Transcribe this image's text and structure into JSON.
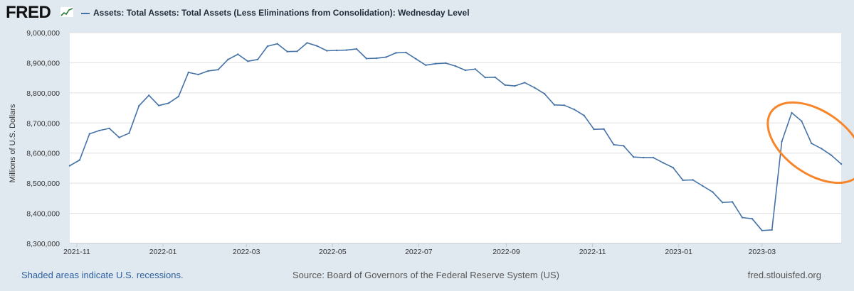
{
  "header": {
    "logo_text": "FRED",
    "logo_icon": "chart-line-icon",
    "legend_label": "Assets: Total Assets: Total Assets (Less Eliminations from Consolidation): Wednesday Level"
  },
  "footer": {
    "recession_note": "Shaded areas indicate U.S. recessions.",
    "source": "Source: Board of Governors of the Federal Reserve System (US)",
    "site": "fred.stlouisfed.org"
  },
  "colors": {
    "line": "#4572a7",
    "annotation": "#f7862b",
    "plot_background": "#ffffff",
    "page_background": "#e1e9f0",
    "gridline": "#e0e0e0"
  },
  "chart_data": {
    "type": "line",
    "title": "",
    "xlabel": "",
    "ylabel": "Millions of U.S. Dollars",
    "ylim": [
      8300000,
      9000000
    ],
    "yticks": [
      8300000,
      8400000,
      8500000,
      8600000,
      8700000,
      8800000,
      8900000,
      9000000
    ],
    "ytick_labels": [
      "8,300,000",
      "8,400,000",
      "8,500,000",
      "8,600,000",
      "8,700,000",
      "8,800,000",
      "8,900,000",
      "9,000,000"
    ],
    "xlim": [
      "2021-10-27",
      "2023-04-26"
    ],
    "xticks": [
      "2021-11-01",
      "2022-01-01",
      "2022-03-01",
      "2022-05-01",
      "2022-07-01",
      "2022-09-01",
      "2022-11-01",
      "2023-01-01",
      "2023-03-01"
    ],
    "xtick_labels": [
      "2021-11",
      "2022-01",
      "2022-03",
      "2022-05",
      "2022-07",
      "2022-09",
      "2022-11",
      "2023-01",
      "2023-03"
    ],
    "grid": "horizontal",
    "legend": "top-left",
    "annotation": "orange ellipse circling the peak in mid-March 2023 and the subsequent decline",
    "series": [
      {
        "name": "Assets: Total Assets: Total Assets (Less Eliminations from Consolidation): Wednesday Level",
        "x": [
          "2021-10-27",
          "2021-11-03",
          "2021-11-10",
          "2021-11-17",
          "2021-11-24",
          "2021-12-01",
          "2021-12-08",
          "2021-12-15",
          "2021-12-22",
          "2021-12-29",
          "2022-01-05",
          "2022-01-12",
          "2022-01-19",
          "2022-01-26",
          "2022-02-02",
          "2022-02-09",
          "2022-02-16",
          "2022-02-23",
          "2022-03-02",
          "2022-03-09",
          "2022-03-16",
          "2022-03-23",
          "2022-03-30",
          "2022-04-06",
          "2022-04-13",
          "2022-04-20",
          "2022-04-27",
          "2022-05-04",
          "2022-05-11",
          "2022-05-18",
          "2022-05-25",
          "2022-06-01",
          "2022-06-08",
          "2022-06-15",
          "2022-06-22",
          "2022-06-29",
          "2022-07-06",
          "2022-07-13",
          "2022-07-20",
          "2022-07-27",
          "2022-08-03",
          "2022-08-10",
          "2022-08-17",
          "2022-08-24",
          "2022-08-31",
          "2022-09-07",
          "2022-09-14",
          "2022-09-21",
          "2022-09-28",
          "2022-10-05",
          "2022-10-12",
          "2022-10-19",
          "2022-10-26",
          "2022-11-02",
          "2022-11-09",
          "2022-11-16",
          "2022-11-23",
          "2022-11-30",
          "2022-12-07",
          "2022-12-14",
          "2022-12-21",
          "2022-12-28",
          "2023-01-04",
          "2023-01-11",
          "2023-01-18",
          "2023-01-25",
          "2023-02-01",
          "2023-02-08",
          "2023-02-15",
          "2023-02-22",
          "2023-03-01",
          "2023-03-08",
          "2023-03-15",
          "2023-03-22",
          "2023-03-29",
          "2023-04-05",
          "2023-04-12",
          "2023-04-19",
          "2023-04-26"
        ],
        "values": [
          8558000,
          8577000,
          8664000,
          8675000,
          8682000,
          8652000,
          8666000,
          8757000,
          8792000,
          8758000,
          8766000,
          8788000,
          8868000,
          8861000,
          8873000,
          8877000,
          8911000,
          8928000,
          8905000,
          8911000,
          8955000,
          8963000,
          8937000,
          8938000,
          8966000,
          8956000,
          8940000,
          8941000,
          8942000,
          8946000,
          8914000,
          8915000,
          8919000,
          8933000,
          8934000,
          8913000,
          8892000,
          8897000,
          8899000,
          8889000,
          8875000,
          8879000,
          8851000,
          8852000,
          8826000,
          8823000,
          8834000,
          8817000,
          8797000,
          8760000,
          8759000,
          8745000,
          8725000,
          8679000,
          8680000,
          8628000,
          8624000,
          8587000,
          8585000,
          8585000,
          8568000,
          8552000,
          8510000,
          8511000,
          8491000,
          8471000,
          8436000,
          8438000,
          8386000,
          8382000,
          8343000,
          8345000,
          8639000,
          8734000,
          8706000,
          8632000,
          8615000,
          8593000,
          8564000
        ]
      }
    ]
  }
}
